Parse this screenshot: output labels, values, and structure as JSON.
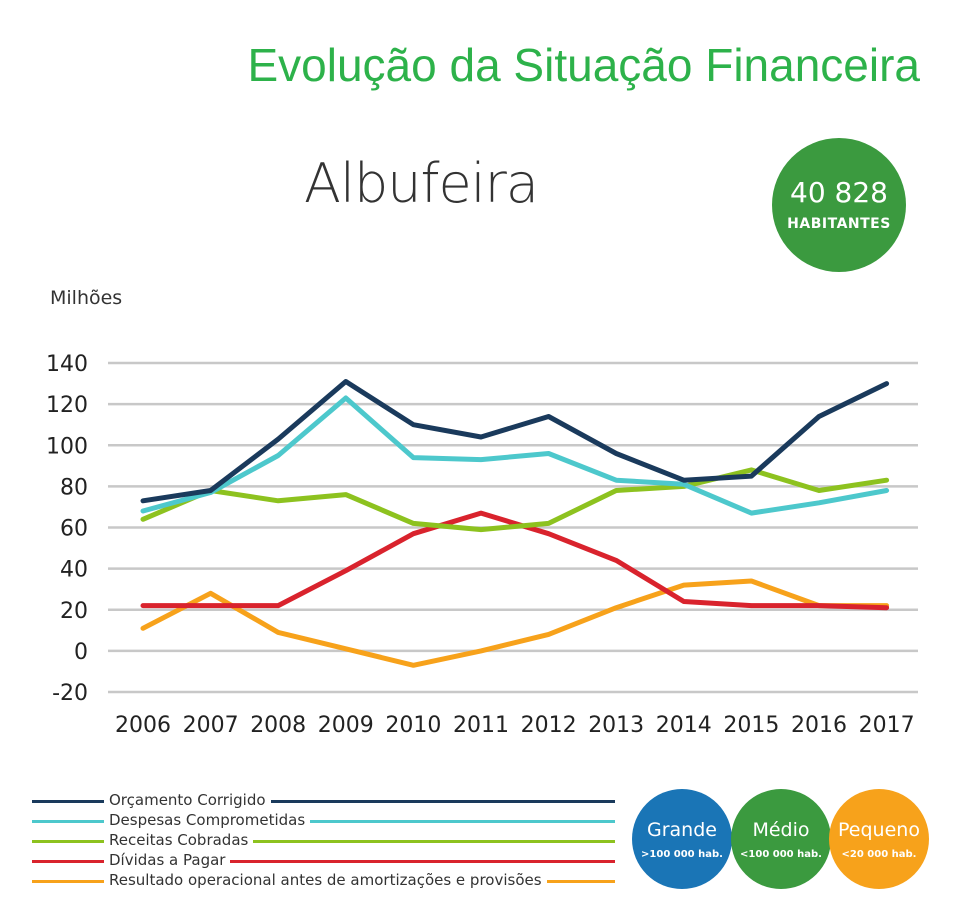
{
  "header": {
    "title": "Evolução da Situação Financeira",
    "municipality": "Albufeira",
    "population": "40 828",
    "population_label": "HABITANTES",
    "unit_label": "Milhões"
  },
  "chart_data": {
    "type": "line",
    "title": "Albufeira",
    "ylabel": "Milhões",
    "ylim": [
      -20,
      140
    ],
    "yticks": [
      140,
      120,
      100,
      80,
      60,
      40,
      20,
      0,
      -20
    ],
    "categories": [
      "2006",
      "2007",
      "2008",
      "2009",
      "2010",
      "2011",
      "2012",
      "2013",
      "2014",
      "2015",
      "2016",
      "2017"
    ],
    "grid": true,
    "legend_position": "bottom-left",
    "series": [
      {
        "name": "Orçamento Corrigido",
        "color": "#1a3a5c",
        "values": [
          73,
          78,
          103,
          131,
          110,
          104,
          114,
          96,
          83,
          85,
          114,
          130
        ]
      },
      {
        "name": "Despesas Comprometidas",
        "color": "#4dc8cc",
        "values": [
          68,
          77,
          95,
          123,
          94,
          93,
          96,
          83,
          81,
          67,
          72,
          78
        ]
      },
      {
        "name": "Receitas Cobradas",
        "color": "#8dc21f",
        "values": [
          64,
          78,
          73,
          76,
          62,
          59,
          62,
          78,
          80,
          88,
          78,
          83
        ]
      },
      {
        "name": "Dívidas a Pagar",
        "color": "#d9232d",
        "values": [
          22,
          22,
          22,
          39,
          57,
          67,
          57,
          44,
          24,
          22,
          22,
          21
        ]
      },
      {
        "name": "Resultado operacional antes de amortizações e provisões",
        "color": "#f7a21b",
        "values": [
          11,
          28,
          9,
          1,
          -7,
          0,
          8,
          21,
          32,
          34,
          22,
          22
        ]
      }
    ]
  },
  "size_badges": [
    {
      "label": "Grande",
      "desc": ">100 000 hab.",
      "color": "#1a75b6"
    },
    {
      "label": "Médio",
      "desc": "<100 000 hab.",
      "color": "#3b9a3f"
    },
    {
      "label": "Pequeno",
      "desc": "<20 000 hab.",
      "color": "#f7a21b"
    }
  ]
}
